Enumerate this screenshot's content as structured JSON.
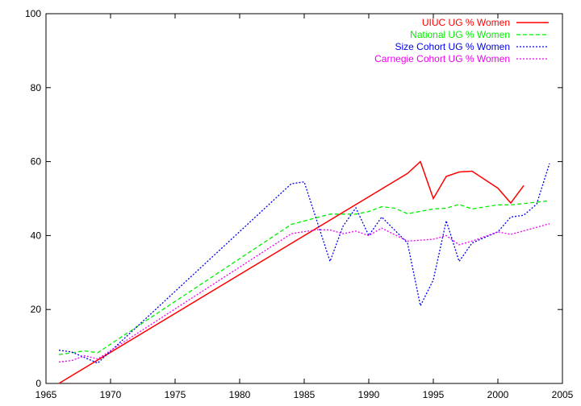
{
  "chart_data": {
    "type": "line",
    "title": "",
    "xlabel": "",
    "ylabel": "",
    "xlim": [
      1965,
      2005
    ],
    "ylim": [
      0,
      100
    ],
    "x_ticks": [
      1965,
      1970,
      1975,
      1980,
      1985,
      1990,
      1995,
      2000,
      2005
    ],
    "y_ticks": [
      0,
      20,
      40,
      60,
      80,
      100
    ],
    "grid": false,
    "legend_position": "top-right",
    "series": [
      {
        "name": "UIUC UG % Women",
        "color": "#ff0000",
        "dash": "solid",
        "x": [
          1966,
          1993,
          1994,
          1995,
          1996,
          1997,
          1998,
          2000,
          2001,
          2002
        ],
        "y": [
          0,
          56.8,
          60,
          50,
          56,
          57.2,
          57.4,
          52.8,
          48.8,
          53.5
        ]
      },
      {
        "name": "National UG % Women",
        "color": "#00ee00",
        "dash": "dashed",
        "x": [
          1966,
          1968,
          1969,
          1984,
          1987,
          1989,
          1990,
          1991,
          1992,
          1993,
          1995,
          1996,
          1997,
          1998,
          2000,
          2001,
          2004
        ],
        "y": [
          7.8,
          8.8,
          8.3,
          43,
          45.8,
          45.8,
          46.5,
          47.8,
          47.4,
          45.9,
          47.2,
          47.4,
          48.4,
          47.2,
          48.3,
          48.3,
          49.4
        ]
      },
      {
        "name": "Size Cohort UG % Women",
        "color": "#0000ee",
        "dash": "dotted",
        "x": [
          1966,
          1967,
          1969,
          1984,
          1985,
          1987,
          1988,
          1989,
          1990,
          1991,
          1993,
          1994,
          1995,
          1996,
          1997,
          1998,
          2000,
          2001,
          2002,
          2003,
          2004
        ],
        "y": [
          9,
          8.5,
          5.5,
          54,
          54.5,
          33,
          42.5,
          47.5,
          40,
          45,
          38,
          21,
          28,
          44,
          33,
          38,
          41,
          45,
          45.5,
          48.5,
          59.5
        ]
      },
      {
        "name": "Carnegie Cohort UG % Women",
        "color": "#ee00ee",
        "dash": "dotted",
        "x": [
          1966,
          1967,
          1968,
          1969,
          1984,
          1986,
          1987,
          1988,
          1989,
          1990,
          1991,
          1993,
          1995,
          1996,
          1997,
          1998,
          2000,
          2001,
          2004
        ],
        "y": [
          5.8,
          6.2,
          7.5,
          6.6,
          40.5,
          41.6,
          41.5,
          40.5,
          41.2,
          40,
          42,
          38.5,
          39,
          40,
          37.5,
          38.5,
          41,
          40.3,
          43.2
        ]
      }
    ]
  }
}
